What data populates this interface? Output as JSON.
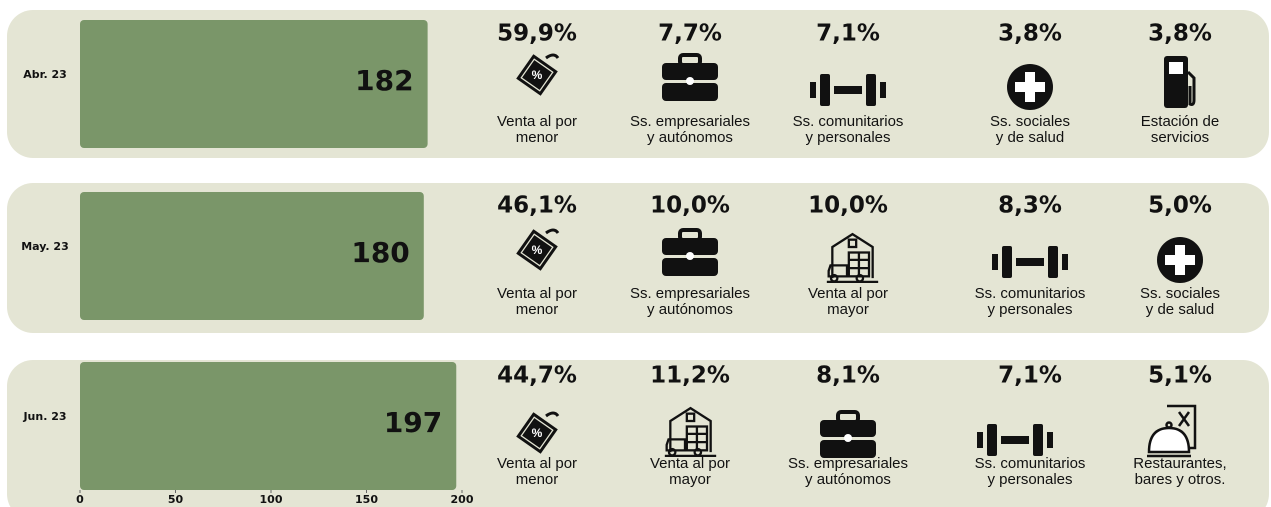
{
  "chart_data": {
    "type": "bar",
    "orientation": "horizontal",
    "categories": [
      "Abr. 23",
      "May. 23",
      "Jun. 23"
    ],
    "values": [
      182,
      180,
      197
    ],
    "color": "#7a9669",
    "xlim": [
      0,
      200
    ],
    "xticks": [
      0,
      50,
      100,
      150,
      200
    ],
    "breakdown": [
      [
        {
          "value": 59.9,
          "value_label": "59,9%",
          "label": [
            "Venta al por",
            "menor"
          ]
        },
        {
          "value": 7.7,
          "value_label": "7,7%",
          "label": [
            "Ss. empresariales",
            "y autónomos"
          ]
        },
        {
          "value": 7.1,
          "value_label": "7,1%",
          "label": [
            "Ss. comunitarios",
            "y personales"
          ]
        },
        {
          "value": 3.8,
          "value_label": "3,8%",
          "label": [
            "Ss. sociales",
            "y de salud"
          ]
        },
        {
          "value": 3.8,
          "value_label": "3,8%",
          "label": [
            "Estación de",
            "servicios"
          ]
        }
      ],
      [
        {
          "value": 46.1,
          "value_label": "46,1%",
          "label": [
            "Venta al por",
            "menor"
          ]
        },
        {
          "value": 10.0,
          "value_label": "10,0%",
          "label": [
            "Ss. empresariales",
            "y autónomos"
          ]
        },
        {
          "value": 10.0,
          "value_label": "10,0%",
          "label": [
            "Venta al por",
            "mayor"
          ]
        },
        {
          "value": 8.3,
          "value_label": "8,3%",
          "label": [
            "Ss. comunitarios",
            "y personales"
          ]
        },
        {
          "value": 5.0,
          "value_label": "5,0%",
          "label": [
            "Ss. sociales",
            "y de salud"
          ]
        }
      ],
      [
        {
          "value": 44.7,
          "value_label": "44,7%",
          "label": [
            "Venta al por",
            "menor"
          ]
        },
        {
          "value": 11.2,
          "value_label": "11,2%",
          "label": [
            "Venta al por",
            "mayor"
          ]
        },
        {
          "value": 8.1,
          "value_label": "8,1%",
          "label": [
            "Ss. empresariales",
            "y autónomos"
          ]
        },
        {
          "value": 7.1,
          "value_label": "7,1%",
          "label": [
            "Ss. comunitarios",
            "y personales"
          ]
        },
        {
          "value": 5.1,
          "value_label": "5,1%",
          "label": [
            "Restaurantes,",
            "bares y otros."
          ]
        }
      ]
    ]
  }
}
